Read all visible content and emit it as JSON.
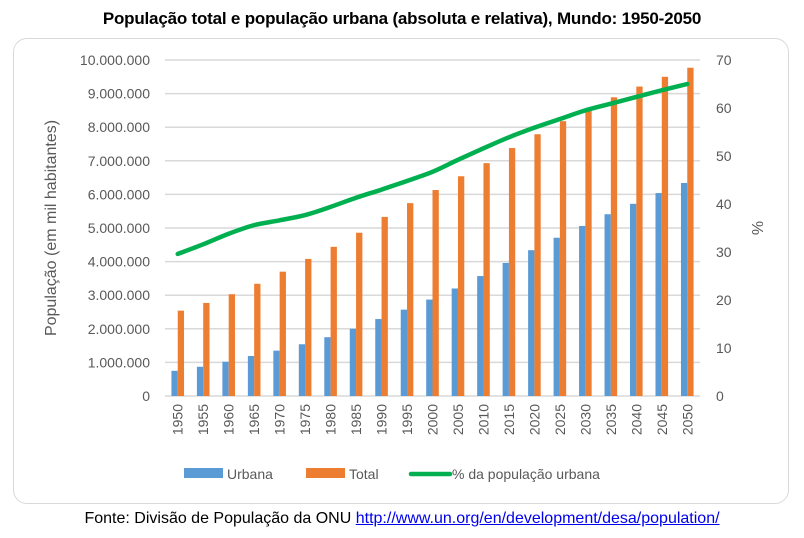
{
  "chart_data": {
    "type": "bar",
    "title": "População total e população urbana (absoluta e relativa), Mundo: 1950-2050",
    "xlabel": "",
    "ylabel": "População (em mil habitantes)",
    "y2label": "%",
    "ylim": [
      0,
      10000000
    ],
    "y2lim": [
      0,
      70
    ],
    "grid": true,
    "legend_position": "bottom",
    "yticks": [
      "0",
      "1.000.000",
      "2.000.000",
      "3.000.000",
      "4.000.000",
      "5.000.000",
      "6.000.000",
      "7.000.000",
      "8.000.000",
      "9.000.000",
      "10.000.000"
    ],
    "y2ticks": [
      "0",
      "10",
      "20",
      "30",
      "40",
      "50",
      "60",
      "70"
    ],
    "categories": [
      "1950",
      "1955",
      "1960",
      "1965",
      "1970",
      "1975",
      "1980",
      "1985",
      "1990",
      "1995",
      "2000",
      "2005",
      "2010",
      "2015",
      "2020",
      "2025",
      "2030",
      "2035",
      "2040",
      "2045",
      "2050"
    ],
    "series": [
      {
        "name": "Urbana",
        "type": "bar",
        "axis": "left",
        "color": "#5b9bd5",
        "values": [
          750000,
          870000,
          1020000,
          1190000,
          1350000,
          1540000,
          1750000,
          2000000,
          2290000,
          2570000,
          2870000,
          3200000,
          3570000,
          3960000,
          4340000,
          4710000,
          5060000,
          5410000,
          5720000,
          6040000,
          6340000
        ]
      },
      {
        "name": "Total",
        "type": "bar",
        "axis": "left",
        "color": "#ed7d31",
        "values": [
          2540000,
          2770000,
          3030000,
          3340000,
          3700000,
          4080000,
          4440000,
          4860000,
          5330000,
          5740000,
          6130000,
          6540000,
          6930000,
          7380000,
          7790000,
          8180000,
          8550000,
          8890000,
          9210000,
          9500000,
          9770000
        ]
      },
      {
        "name": "% da população urbana",
        "type": "line",
        "axis": "right",
        "color": "#00b050",
        "values": [
          29.6,
          31.6,
          33.8,
          35.6,
          36.6,
          37.7,
          39.4,
          41.3,
          43.0,
          44.8,
          46.7,
          49.2,
          51.6,
          53.9,
          55.9,
          57.7,
          59.5,
          60.9,
          62.3,
          63.7,
          65.0
        ]
      }
    ]
  },
  "source": {
    "label": "Fonte: Divisão de População da ONU",
    "link": "http://www.un.org/en/development/desa/population/"
  }
}
